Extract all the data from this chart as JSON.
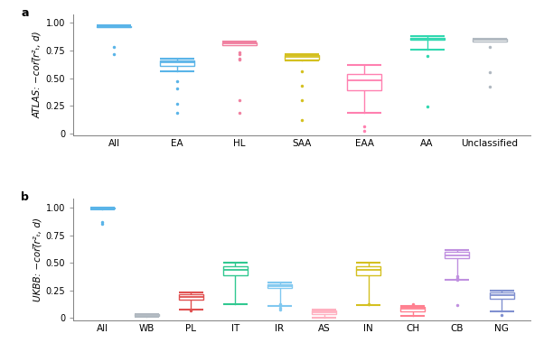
{
  "panel_a": {
    "ylabel": "ATLAS: −cor(̅r²ₜ, d)",
    "categories": [
      "All",
      "EA",
      "HL",
      "SAA",
      "EAA",
      "AA",
      "Unclassified"
    ],
    "colors": [
      "#5ab4e8",
      "#5ab4e8",
      "#f080a0",
      "#d4c020",
      "#ff80b0",
      "#30d8b0",
      "#b0b8c0"
    ],
    "boxes": [
      {
        "q1": 0.962,
        "median": 0.968,
        "q3": 0.972,
        "whislo": 0.96,
        "whishi": 0.975,
        "fliers_low": [
          0.78,
          0.72
        ],
        "fliers_high": []
      },
      {
        "q1": 0.615,
        "median": 0.64,
        "q3": 0.66,
        "whislo": 0.56,
        "whishi": 0.68,
        "fliers_low": [
          0.47,
          0.41,
          0.27,
          0.19
        ],
        "fliers_high": []
      },
      {
        "q1": 0.8,
        "median": 0.815,
        "q3": 0.826,
        "whislo": 0.796,
        "whishi": 0.83,
        "fliers_low": [
          0.73,
          0.72,
          0.68,
          0.67,
          0.3,
          0.19
        ],
        "fliers_high": []
      },
      {
        "q1": 0.668,
        "median": 0.69,
        "q3": 0.71,
        "whislo": 0.66,
        "whishi": 0.718,
        "fliers_low": [
          0.56,
          0.43,
          0.3,
          0.12
        ],
        "fliers_high": []
      },
      {
        "q1": 0.39,
        "median": 0.48,
        "q3": 0.54,
        "whislo": 0.19,
        "whishi": 0.62,
        "fliers_low": [
          0.06,
          0.02
        ],
        "fliers_high": []
      },
      {
        "q1": 0.845,
        "median": 0.858,
        "q3": 0.868,
        "whislo": 0.76,
        "whishi": 0.878,
        "fliers_low": [
          0.7,
          0.24
        ],
        "fliers_high": []
      },
      {
        "q1": 0.83,
        "median": 0.848,
        "q3": 0.856,
        "whislo": 0.83,
        "whishi": 0.856,
        "fliers_low": [
          0.78,
          0.55,
          0.42
        ],
        "fliers_high": []
      }
    ]
  },
  "panel_b": {
    "ylabel": "UKBB: −cor(̅r²ₜ, d)",
    "categories": [
      "All",
      "WB",
      "PL",
      "IT",
      "IR",
      "AS",
      "IN",
      "CH",
      "CB",
      "NG"
    ],
    "colors": [
      "#5ab4e8",
      "#b0b8c0",
      "#e05050",
      "#30c890",
      "#80c8f0",
      "#ffb0c0",
      "#d4c020",
      "#ff8090",
      "#c090e0",
      "#8090d0"
    ],
    "boxes": [
      {
        "q1": 0.99,
        "median": 0.994,
        "q3": 0.997,
        "whislo": 0.98,
        "whishi": 0.999,
        "fliers_low": [
          0.87,
          0.85
        ],
        "fliers_high": []
      },
      {
        "q1": 0.022,
        "median": 0.028,
        "q3": 0.033,
        "whislo": 0.014,
        "whishi": 0.04,
        "fliers_low": [],
        "fliers_high": []
      },
      {
        "q1": 0.165,
        "median": 0.195,
        "q3": 0.22,
        "whislo": 0.08,
        "whishi": 0.235,
        "fliers_low": [
          0.07
        ],
        "fliers_high": []
      },
      {
        "q1": 0.385,
        "median": 0.44,
        "q3": 0.472,
        "whislo": 0.125,
        "whishi": 0.498,
        "fliers_low": [],
        "fliers_high": []
      },
      {
        "q1": 0.27,
        "median": 0.292,
        "q3": 0.308,
        "whislo": 0.11,
        "whishi": 0.322,
        "fliers_low": [
          0.13,
          0.09,
          0.08
        ],
        "fliers_high": []
      },
      {
        "q1": 0.038,
        "median": 0.055,
        "q3": 0.068,
        "whislo": 0.005,
        "whishi": 0.078,
        "fliers_low": [],
        "fliers_high": []
      },
      {
        "q1": 0.39,
        "median": 0.44,
        "q3": 0.47,
        "whislo": 0.115,
        "whishi": 0.5,
        "fliers_low": [
          0.13
        ],
        "fliers_high": []
      },
      {
        "q1": 0.058,
        "median": 0.082,
        "q3": 0.098,
        "whislo": 0.022,
        "whishi": 0.112,
        "fliers_low": [
          0.13
        ],
        "fliers_high": []
      },
      {
        "q1": 0.542,
        "median": 0.568,
        "q3": 0.598,
        "whislo": 0.35,
        "whishi": 0.618,
        "fliers_low": [
          0.38,
          0.36,
          0.35,
          0.12
        ],
        "fliers_high": []
      },
      {
        "q1": 0.172,
        "median": 0.208,
        "q3": 0.232,
        "whislo": 0.058,
        "whishi": 0.248,
        "fliers_low": [
          0.03
        ],
        "fliers_high": []
      }
    ]
  },
  "ylim": [
    -0.02,
    1.08
  ],
  "box_width": 0.55,
  "linewidth": 1.0,
  "flier_size": 2.5,
  "cap_ratio": 1.0
}
